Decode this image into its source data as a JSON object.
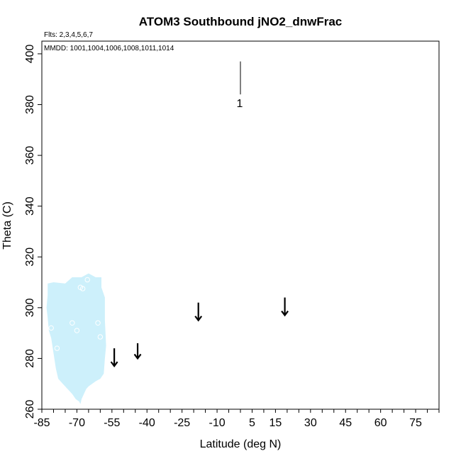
{
  "chart_data": {
    "type": "scatter",
    "title": "ATOM3 Southbound jNO2_dnwFrac",
    "annotations": {
      "flights": "Flts: 2,3,4,5,6,7",
      "dates": "MMDD: 1001,1004,1006,1008,1011,1014"
    },
    "xlabel": "Latitude (deg N)",
    "ylabel": "Theta (C)",
    "xlim": [
      -85,
      85
    ],
    "ylim": [
      260,
      405
    ],
    "x_ticks": [
      -85,
      -70,
      -55,
      -40,
      -25,
      -10,
      5,
      15,
      30,
      45,
      60,
      75
    ],
    "y_ticks": [
      260,
      280,
      300,
      320,
      340,
      360,
      380,
      400
    ],
    "legend_scale": {
      "label": "1",
      "x": 0,
      "y_top": 397,
      "y_bottom": 384
    },
    "fill_color": "#cdf0fb",
    "fill_region": [
      [
        -82.5,
        309.5
      ],
      [
        -80,
        310
      ],
      [
        -75,
        309.5
      ],
      [
        -72,
        312
      ],
      [
        -68,
        312
      ],
      [
        -65,
        313.5
      ],
      [
        -62,
        312
      ],
      [
        -59.5,
        312
      ],
      [
        -59.5,
        308
      ],
      [
        -58,
        304
      ],
      [
        -58,
        295
      ],
      [
        -57.5,
        285
      ],
      [
        -58,
        280
      ],
      [
        -58.5,
        274
      ],
      [
        -60,
        272
      ],
      [
        -62,
        271
      ],
      [
        -63.5,
        270
      ],
      [
        -65,
        269
      ],
      [
        -66,
        268
      ],
      [
        -67,
        266
      ],
      [
        -68,
        264
      ],
      [
        -68.5,
        262
      ],
      [
        -69,
        263
      ],
      [
        -70.5,
        264
      ],
      [
        -72,
        266
      ],
      [
        -74,
        268
      ],
      [
        -76,
        270
      ],
      [
        -78,
        272
      ],
      [
        -79,
        276
      ],
      [
        -80,
        282
      ],
      [
        -81,
        288
      ],
      [
        -82,
        291
      ],
      [
        -82.5,
        296
      ],
      [
        -83,
        300
      ],
      [
        -82.5,
        305
      ]
    ],
    "points": [
      {
        "x": -81,
        "y": 292
      },
      {
        "x": -78.5,
        "y": 284
      },
      {
        "x": -72,
        "y": 294
      },
      {
        "x": -70,
        "y": 291
      },
      {
        "x": -68.5,
        "y": 308
      },
      {
        "x": -67.5,
        "y": 307.5
      },
      {
        "x": -65.5,
        "y": 311
      },
      {
        "x": -61,
        "y": 294
      },
      {
        "x": -60,
        "y": 288.5
      }
    ],
    "arrows": [
      {
        "x": -54,
        "y_from": 284,
        "y_to": 277
      },
      {
        "x": -44,
        "y_from": 286,
        "y_to": 280
      },
      {
        "x": -18,
        "y_from": 302,
        "y_to": 295
      },
      {
        "x": 19,
        "y_from": 304,
        "y_to": 297
      }
    ]
  }
}
